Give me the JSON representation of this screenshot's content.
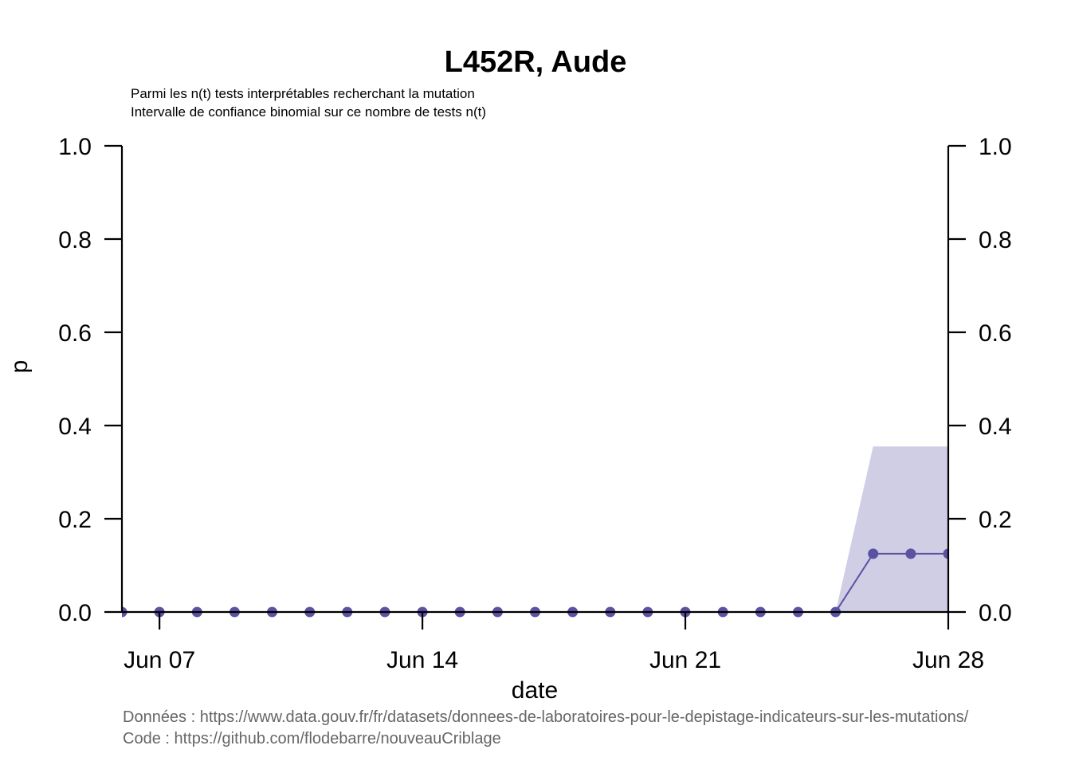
{
  "chart_data": {
    "type": "line",
    "title": "L452R, Aude",
    "subtitle_lines": [
      "Parmi les n(t) tests interprétables recherchant la mutation",
      "Intervalle de confiance binomial sur ce nombre de tests n(t)"
    ],
    "xlabel": "date",
    "ylabel": "p",
    "ylim": [
      0,
      1
    ],
    "y_ticks": [
      "0.0",
      "0.2",
      "0.4",
      "0.6",
      "0.8",
      "1.0"
    ],
    "x_range": [
      "2021-06-06",
      "2021-06-28"
    ],
    "x_ticks": [
      {
        "date": "2021-06-07",
        "label": "Jun 07"
      },
      {
        "date": "2021-06-14",
        "label": "Jun 14"
      },
      {
        "date": "2021-06-21",
        "label": "Jun 21"
      },
      {
        "date": "2021-06-28",
        "label": "Jun 28"
      }
    ],
    "series": [
      {
        "x": [
          "2021-06-06",
          "2021-06-07",
          "2021-06-08",
          "2021-06-09",
          "2021-06-10",
          "2021-06-11",
          "2021-06-12",
          "2021-06-13",
          "2021-06-14",
          "2021-06-15",
          "2021-06-16",
          "2021-06-17",
          "2021-06-18",
          "2021-06-19",
          "2021-06-20",
          "2021-06-21",
          "2021-06-22",
          "2021-06-23",
          "2021-06-24",
          "2021-06-25",
          "2021-06-26",
          "2021-06-27",
          "2021-06-28"
        ],
        "values": [
          0,
          0,
          0,
          0,
          0,
          0,
          0,
          0,
          0,
          0,
          0,
          0,
          0,
          0,
          0,
          0,
          0,
          0,
          0,
          0,
          0.125,
          0.125,
          0.125
        ],
        "ci_low": [
          0,
          0,
          0,
          0,
          0,
          0,
          0,
          0,
          0,
          0,
          0,
          0,
          0,
          0,
          0,
          0,
          0,
          0,
          0,
          0,
          0,
          0,
          0
        ],
        "ci_high": [
          0,
          0,
          0,
          0,
          0,
          0,
          0,
          0,
          0,
          0,
          0,
          0,
          0,
          0,
          0,
          0,
          0,
          0,
          0,
          0,
          0.355,
          0.355,
          0.355
        ]
      }
    ],
    "colors": {
      "line": "#5b52a3",
      "band": "#d0cee5"
    },
    "caption_lines": [
      "Données : https://www.data.gouv.fr/fr/datasets/donnees-de-laboratoires-pour-le-depistage-indicateurs-sur-les-mutations/",
      "Code : https://github.com/flodebarre/nouveauCriblage"
    ]
  }
}
